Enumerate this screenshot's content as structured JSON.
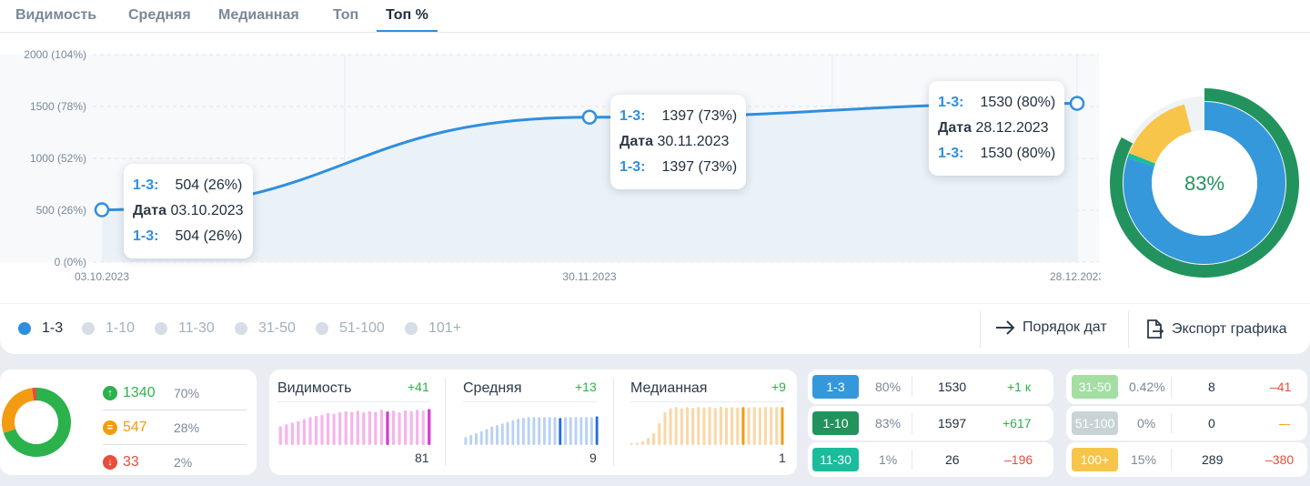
{
  "tabs": [
    "Видимость",
    "Средняя",
    "Медианная",
    "Топ",
    "Топ %"
  ],
  "active_tab": "Топ %",
  "chart_data": {
    "type": "line",
    "series": [
      {
        "name": "1-3",
        "values": [
          504,
          1397,
          1530
        ]
      }
    ],
    "x": [
      "03.10.2023",
      "30.11.2023",
      "28.12.2023"
    ],
    "y_ticks": [
      "0 (0%)",
      "500 (26%)",
      "1000 (52%)",
      "1500 (78%)",
      "2000 (104%)"
    ],
    "ylim": [
      0,
      2000
    ],
    "x_ticks": [
      "03.10.2023",
      "30.11.2023",
      "28.12.2023"
    ],
    "color": "#2f8fde"
  },
  "tooltips": [
    {
      "key": "1-3:",
      "value": "504 (26%)",
      "date_label": "Дата",
      "date": "03.10.2023"
    },
    {
      "key": "1-3:",
      "value": "1397 (73%)",
      "date_label": "Дата",
      "date": "30.11.2023"
    },
    {
      "key": "1-3:",
      "value": "1530 (80%)",
      "date_label": "Дата",
      "date": "28.12.2023"
    }
  ],
  "big_donut": {
    "center_label": "83%",
    "inner": [
      {
        "name": "1-3",
        "value": 80,
        "color": "#3498db"
      },
      {
        "name": "11-30",
        "value": 1,
        "color": "#1abc9c"
      },
      {
        "name": "100+",
        "value": 15,
        "color": "#f7c54a"
      }
    ],
    "outer": [
      {
        "name": "1-10",
        "value": 83,
        "color": "#23935e"
      }
    ]
  },
  "legend": [
    "1-3",
    "1-10",
    "11-30",
    "31-50",
    "51-100",
    "101+"
  ],
  "legend_active": "1-3",
  "actions": {
    "order": "Порядок дат",
    "export": "Экспорт графика"
  },
  "summary": {
    "donut": [
      {
        "value": 70,
        "color": "#2bb24c"
      },
      {
        "value": 28,
        "color": "#f39c12"
      },
      {
        "value": 2,
        "color": "#e74c3c"
      }
    ],
    "up": {
      "value": "1340",
      "pct": "70%",
      "color": "#2bb24c"
    },
    "same": {
      "value": "547",
      "pct": "28%",
      "color": "#f39c12"
    },
    "down": {
      "value": "33",
      "pct": "2%",
      "color": "#e74c3c"
    }
  },
  "minis": [
    {
      "title": "Видимость",
      "delta": "+41",
      "value": "81",
      "color": "#f4b6e9",
      "accent": "#d63bd0",
      "bars": [
        0.47,
        0.52,
        0.56,
        0.6,
        0.65,
        0.7,
        0.73,
        0.75,
        0.8,
        0.78,
        0.82,
        0.85,
        0.83,
        0.86,
        0.82,
        0.85,
        0.83,
        0.88,
        0.84,
        0.86,
        0.82,
        0.87,
        0.85,
        0.88,
        0.86,
        0.9
      ]
    },
    {
      "title": "Средняя",
      "delta": "+13",
      "value": "9",
      "color": "#b8d1f3",
      "accent": "#1f6fe0",
      "bars": [
        0.2,
        0.25,
        0.3,
        0.35,
        0.4,
        0.47,
        0.5,
        0.54,
        0.58,
        0.62,
        0.66,
        0.68,
        0.7,
        0.7,
        0.7,
        0.7,
        0.7,
        0.7,
        0.68,
        0.7,
        0.7,
        0.7,
        0.7,
        0.7,
        0.7,
        0.72
      ]
    },
    {
      "title": "Медианная",
      "delta": "+9",
      "value": "1",
      "color": "#fad7a8",
      "accent": "#f39c12",
      "bars": [
        0.05,
        0.06,
        0.1,
        0.18,
        0.3,
        0.55,
        0.82,
        0.92,
        0.95,
        0.92,
        0.95,
        0.93,
        0.95,
        0.94,
        0.95,
        0.93,
        0.96,
        0.94,
        0.95,
        0.94,
        0.95,
        0.94,
        0.95,
        0.94,
        0.95,
        0.95,
        0.95,
        0.95
      ]
    }
  ],
  "table_left": [
    {
      "range": "1-3",
      "pct": "80%",
      "count": "1530",
      "delta": "+1 к",
      "chip": "#3498db",
      "delta_color": "#2bb24c"
    },
    {
      "range": "1-10",
      "pct": "83%",
      "count": "1597",
      "delta": "+617",
      "chip": "#23935e",
      "delta_color": "#2bb24c"
    },
    {
      "range": "11-30",
      "pct": "1%",
      "count": "26",
      "delta": "–196",
      "chip": "#1abc9c",
      "delta_color": "#e74c3c"
    }
  ],
  "table_right": [
    {
      "range": "31-50",
      "pct": "0.42%",
      "count": "8",
      "delta": "–41",
      "chip": "#a3dea3",
      "delta_color": "#e74c3c"
    },
    {
      "range": "51-100",
      "pct": "0%",
      "count": "0",
      "delta": "–-",
      "chip": "#c8d3d6",
      "delta_color": "#f39c12"
    },
    {
      "range": "100+",
      "pct": "15%",
      "count": "289",
      "delta": "–380",
      "chip": "#f7c54a",
      "delta_color": "#e74c3c"
    }
  ]
}
